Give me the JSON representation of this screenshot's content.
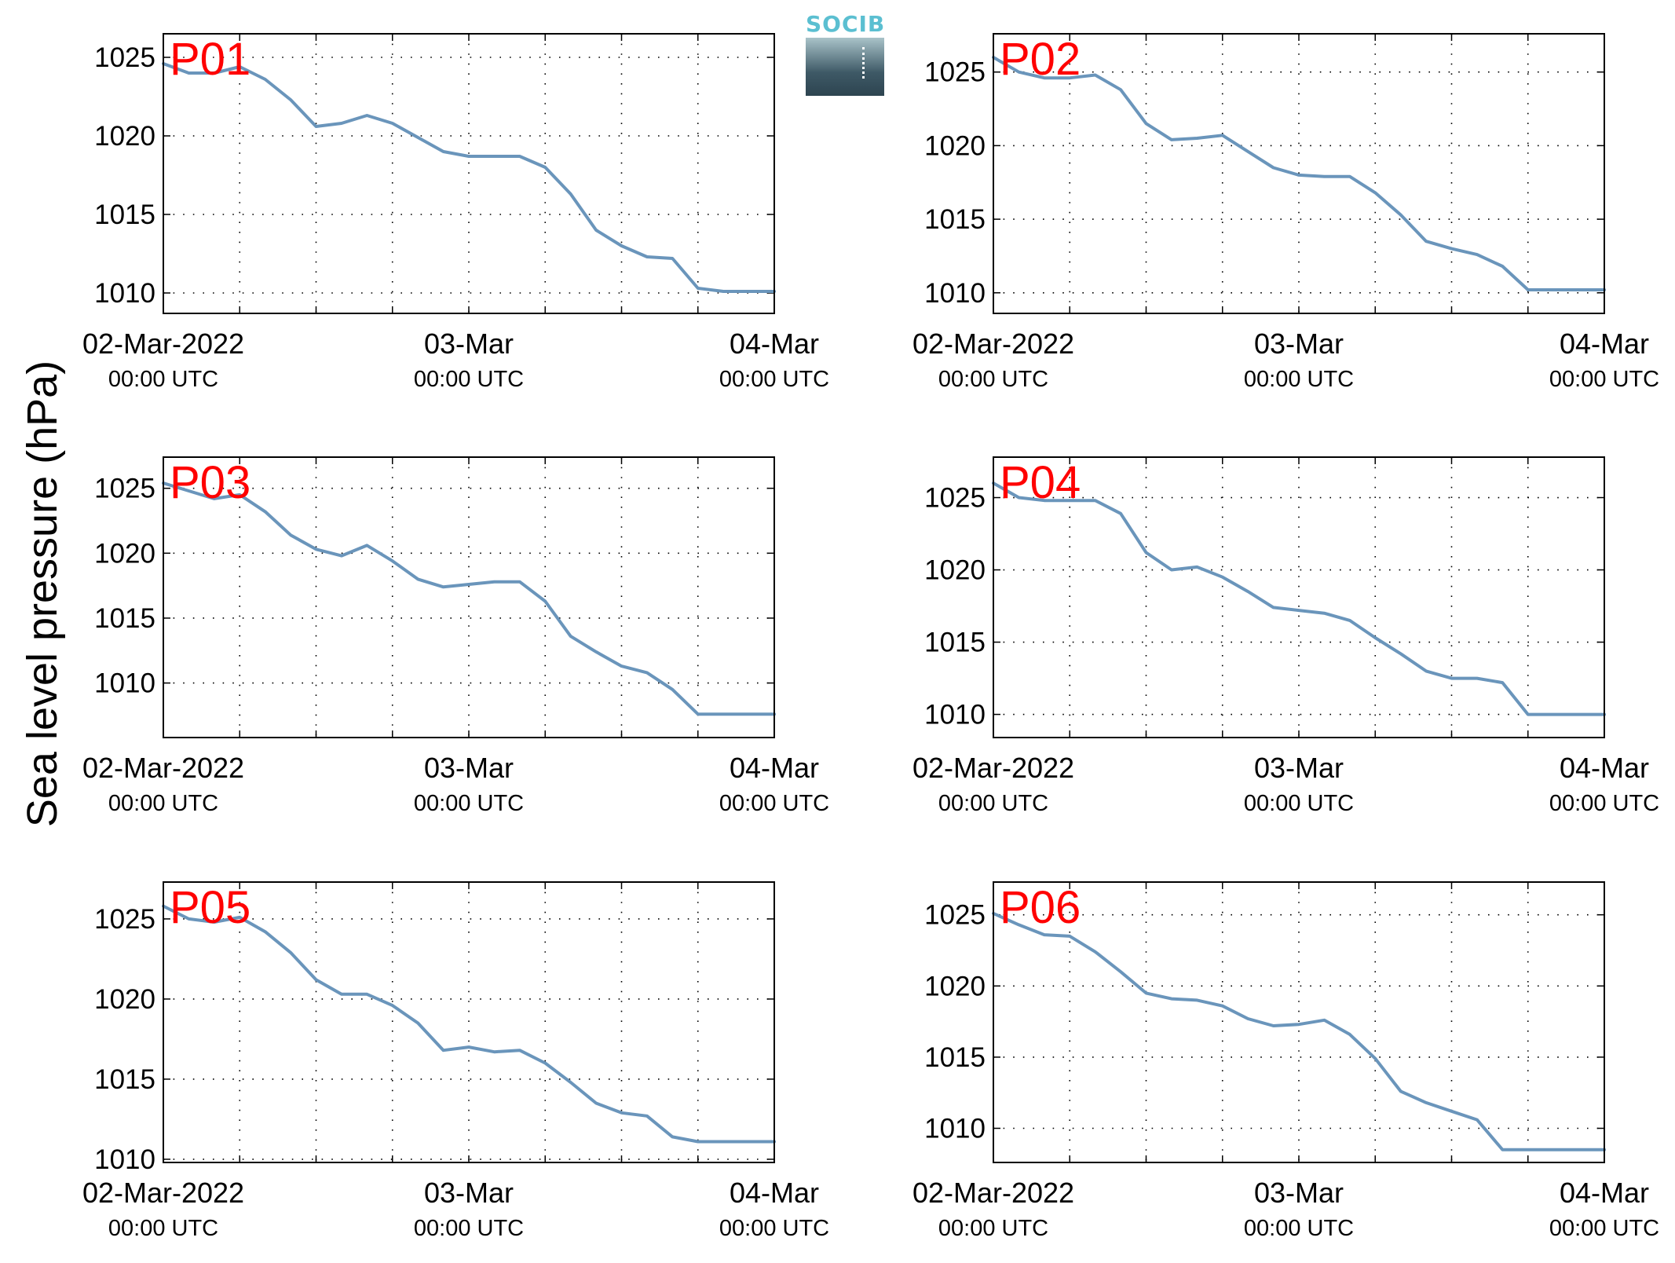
{
  "figure": {
    "ylabel": "Sea level pressure (hPa)",
    "logo_text": "SOCIB",
    "colors": {
      "line": "#6a95bb",
      "station_label": "#ff0000",
      "axis": "#000000",
      "grid": "#000000"
    }
  },
  "chart_data": [
    {
      "type": "line",
      "station": "P01",
      "x_ticks": [
        {
          "date": "02-Mar-2022",
          "time": "00:00 UTC"
        },
        {
          "date": "03-Mar",
          "time": "00:00 UTC"
        },
        {
          "date": "04-Mar",
          "time": "00:00 UTC"
        }
      ],
      "x_hours": [
        0,
        2,
        4,
        6,
        8,
        10,
        12,
        14,
        16,
        18,
        20,
        22,
        24,
        26,
        28,
        30,
        32,
        34,
        36,
        38,
        40,
        42,
        44,
        46,
        48
      ],
      "y": [
        1024.6,
        1024.0,
        1024.0,
        1024.4,
        1023.6,
        1022.3,
        1020.6,
        1020.8,
        1021.3,
        1020.8,
        1019.9,
        1019.0,
        1018.7,
        1018.7,
        1018.7,
        1018.0,
        1016.3,
        1014.0,
        1013.0,
        1012.3,
        1012.2,
        1010.3,
        1010.1,
        1010.1,
        1010.1
      ],
      "ylim": [
        1008.7,
        1026.5
      ],
      "yticks": [
        1010,
        1015,
        1020,
        1025
      ],
      "grid": true
    },
    {
      "type": "line",
      "station": "P02",
      "x_ticks": [
        {
          "date": "02-Mar-2022",
          "time": "00:00 UTC"
        },
        {
          "date": "03-Mar",
          "time": "00:00 UTC"
        },
        {
          "date": "04-Mar",
          "time": "00:00 UTC"
        }
      ],
      "x_hours": [
        0,
        2,
        4,
        6,
        8,
        10,
        12,
        14,
        16,
        18,
        20,
        22,
        24,
        26,
        28,
        30,
        32,
        34,
        36,
        38,
        40,
        42,
        44,
        46,
        48
      ],
      "y": [
        1026.0,
        1025.0,
        1024.6,
        1024.6,
        1024.8,
        1023.8,
        1021.5,
        1020.4,
        1020.5,
        1020.7,
        1019.6,
        1018.5,
        1018.0,
        1017.9,
        1017.9,
        1016.8,
        1015.3,
        1013.5,
        1013.0,
        1012.6,
        1011.8,
        1010.2,
        1010.2,
        1010.2,
        1010.2
      ],
      "ylim": [
        1008.6,
        1027.6
      ],
      "yticks": [
        1010,
        1015,
        1020,
        1025
      ],
      "grid": true
    },
    {
      "type": "line",
      "station": "P03",
      "x_ticks": [
        {
          "date": "02-Mar-2022",
          "time": "00:00 UTC"
        },
        {
          "date": "03-Mar",
          "time": "00:00 UTC"
        },
        {
          "date": "04-Mar",
          "time": "00:00 UTC"
        }
      ],
      "x_hours": [
        0,
        2,
        4,
        6,
        8,
        10,
        12,
        14,
        16,
        18,
        20,
        22,
        24,
        26,
        28,
        30,
        32,
        34,
        36,
        38,
        40,
        42,
        44,
        46,
        48
      ],
      "y": [
        1025.4,
        1024.8,
        1024.2,
        1024.5,
        1023.2,
        1021.4,
        1020.3,
        1019.8,
        1020.6,
        1019.4,
        1018.0,
        1017.4,
        1017.6,
        1017.8,
        1017.8,
        1016.3,
        1013.6,
        1012.4,
        1011.3,
        1010.8,
        1009.5,
        1007.6,
        1007.6,
        1007.6,
        1007.6
      ],
      "ylim": [
        1005.8,
        1027.4
      ],
      "yticks": [
        1010,
        1015,
        1020,
        1025
      ],
      "grid": true
    },
    {
      "type": "line",
      "station": "P04",
      "x_ticks": [
        {
          "date": "02-Mar-2022",
          "time": "00:00 UTC"
        },
        {
          "date": "03-Mar",
          "time": "00:00 UTC"
        },
        {
          "date": "04-Mar",
          "time": "00:00 UTC"
        }
      ],
      "x_hours": [
        0,
        2,
        4,
        6,
        8,
        10,
        12,
        14,
        16,
        18,
        20,
        22,
        24,
        26,
        28,
        30,
        32,
        34,
        36,
        38,
        40,
        42,
        44,
        46,
        48
      ],
      "y": [
        1026.0,
        1025.0,
        1024.8,
        1024.8,
        1024.8,
        1023.9,
        1021.2,
        1020.0,
        1020.2,
        1019.5,
        1018.5,
        1017.4,
        1017.2,
        1017.0,
        1016.5,
        1015.3,
        1014.2,
        1013.0,
        1012.5,
        1012.5,
        1012.2,
        1010.0,
        1010.0,
        1010.0,
        1010.0
      ],
      "ylim": [
        1008.4,
        1027.8
      ],
      "yticks": [
        1010,
        1015,
        1020,
        1025
      ],
      "grid": true
    },
    {
      "type": "line",
      "station": "P05",
      "x_ticks": [
        {
          "date": "02-Mar-2022",
          "time": "00:00 UTC"
        },
        {
          "date": "03-Mar",
          "time": "00:00 UTC"
        },
        {
          "date": "04-Mar",
          "time": "00:00 UTC"
        }
      ],
      "x_hours": [
        0,
        2,
        4,
        6,
        8,
        10,
        12,
        14,
        16,
        18,
        20,
        22,
        24,
        26,
        28,
        30,
        32,
        34,
        36,
        38,
        40,
        42,
        44,
        46,
        48
      ],
      "y": [
        1025.8,
        1025.0,
        1024.8,
        1025.1,
        1024.2,
        1022.9,
        1021.2,
        1020.3,
        1020.3,
        1019.6,
        1018.5,
        1016.8,
        1017.0,
        1016.7,
        1016.8,
        1016.0,
        1014.8,
        1013.5,
        1012.9,
        1012.7,
        1011.4,
        1011.1,
        1011.1,
        1011.1,
        1011.1
      ],
      "ylim": [
        1009.8,
        1027.3
      ],
      "yticks": [
        1010,
        1015,
        1020,
        1025
      ],
      "grid": true
    },
    {
      "type": "line",
      "station": "P06",
      "x_ticks": [
        {
          "date": "02-Mar-2022",
          "time": "00:00 UTC"
        },
        {
          "date": "03-Mar",
          "time": "00:00 UTC"
        },
        {
          "date": "04-Mar",
          "time": "00:00 UTC"
        }
      ],
      "x_hours": [
        0,
        2,
        4,
        6,
        8,
        10,
        12,
        14,
        16,
        18,
        20,
        22,
        24,
        26,
        28,
        30,
        32,
        34,
        36,
        38,
        40,
        42,
        44,
        46,
        48
      ],
      "y": [
        1025.1,
        1024.3,
        1023.6,
        1023.5,
        1022.4,
        1021.0,
        1019.5,
        1019.1,
        1019.0,
        1018.6,
        1017.7,
        1017.2,
        1017.3,
        1017.6,
        1016.6,
        1014.9,
        1012.6,
        1011.8,
        1011.2,
        1010.6,
        1008.5,
        1008.5,
        1008.5,
        1008.5,
        1008.5
      ],
      "ylim": [
        1007.6,
        1027.3
      ],
      "yticks": [
        1010,
        1015,
        1020,
        1025
      ],
      "grid": true
    }
  ]
}
